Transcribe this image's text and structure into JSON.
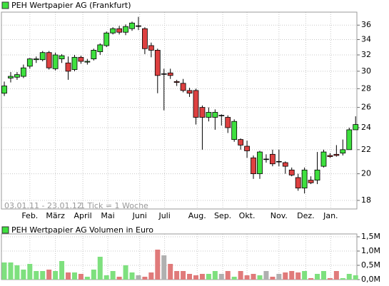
{
  "chart_data": [
    {
      "type": "candlestick",
      "title": "PEH Wertpapier AG (Frankfurt)",
      "annotations": [
        "03.01.11 - 23.01.12",
        "1 Tick = 1 Woche"
      ],
      "open": [
        27.5,
        29.2,
        29.3,
        29.4,
        30.6,
        31.4,
        31.4,
        32.3,
        30.3,
        31.5,
        31.0,
        30.2,
        31.7,
        31.1,
        31.5,
        32.4,
        33.2,
        34.9,
        35.5,
        35.0,
        35.5,
        35.9,
        35.5,
        33.2,
        32.6,
        29.7,
        29.8,
        28.8,
        28.6,
        27.8,
        27.8,
        26.0,
        25.0,
        25.0,
        25.2,
        25.0,
        22.9,
        22.9,
        22.3,
        21.3,
        20.0,
        21.2,
        21.6,
        21.0,
        20.9,
        20.3,
        19.7,
        18.9,
        19.5,
        19.5,
        20.6,
        21.5,
        21.6,
        21.7,
        22.0,
        23.8
      ],
      "high": [
        28.8,
        29.9,
        29.9,
        30.8,
        31.6,
        31.8,
        32.5,
        32.5,
        32.3,
        32.1,
        31.8,
        32.0,
        31.9,
        31.5,
        32.8,
        33.5,
        35.1,
        35.7,
        35.9,
        36.1,
        36.5,
        37.2,
        35.7,
        33.6,
        32.8,
        30.3,
        30.3,
        29.0,
        29.1,
        28.1,
        28.0,
        26.2,
        26.0,
        25.8,
        25.3,
        25.2,
        24.8,
        23.0,
        22.8,
        21.5,
        21.9,
        21.6,
        22.0,
        22.0,
        21.0,
        20.5,
        20.0,
        20.5,
        19.8,
        21.8,
        22.0,
        21.7,
        22.4,
        22.9,
        24.0,
        25.1
      ],
      "low": [
        27.2,
        28.7,
        29.0,
        29.2,
        30.3,
        31.0,
        31.2,
        30.2,
        30.1,
        31.0,
        29.0,
        30.0,
        30.9,
        30.8,
        31.3,
        32.0,
        33.0,
        34.7,
        34.7,
        34.6,
        35.2,
        35.3,
        32.1,
        31.7,
        27.5,
        25.7,
        29.1,
        28.3,
        27.6,
        27.1,
        24.3,
        22.0,
        24.6,
        23.8,
        24.2,
        23.5,
        22.7,
        22.0,
        21.3,
        19.6,
        19.6,
        20.9,
        20.6,
        20.6,
        20.0,
        19.8,
        18.7,
        18.5,
        19.2,
        19.2,
        20.5,
        21.3,
        21.4,
        21.5,
        22.0,
        23.8
      ],
      "close": [
        28.3,
        29.4,
        29.6,
        30.4,
        31.5,
        31.5,
        32.3,
        30.4,
        32.0,
        31.9,
        30.0,
        31.7,
        31.2,
        31.2,
        32.6,
        33.3,
        34.9,
        35.5,
        35.0,
        35.8,
        36.3,
        35.9,
        32.8,
        32.6,
        29.5,
        29.7,
        29.5,
        28.7,
        27.8,
        27.5,
        25.0,
        25.0,
        25.5,
        25.5,
        25.2,
        24.0,
        24.6,
        22.4,
        21.9,
        20.0,
        21.8,
        21.2,
        20.8,
        21.0,
        20.6,
        19.9,
        18.9,
        20.3,
        19.3,
        20.3,
        21.8,
        21.4,
        21.5,
        22.0,
        23.8,
        24.3
      ],
      "up_color": "#3ee03e",
      "down_color": "#dd4040",
      "flat_color": "#000000",
      "log_scale": true,
      "grid": true,
      "xlim": [
        -0.45,
        55.2
      ],
      "xticks": [
        {
          "value": 4.0,
          "label": "Feb."
        },
        {
          "value": 8.0,
          "label": "März"
        },
        {
          "value": 12.3,
          "label": "April"
        },
        {
          "value": 16.2,
          "label": "Mai"
        },
        {
          "value": 21.2,
          "label": "Juni"
        },
        {
          "value": 25.1,
          "label": "Juli"
        },
        {
          "value": 30.2,
          "label": "Aug."
        },
        {
          "value": 34.2,
          "label": "Sep."
        },
        {
          "value": 38.0,
          "label": "Okt."
        },
        {
          "value": 43.0,
          "label": "Nov."
        },
        {
          "value": 47.2,
          "label": "Dez."
        },
        {
          "value": 51.1,
          "label": "Jan."
        }
      ],
      "ylim": [
        17.4,
        37.9
      ],
      "yticks": [
        18,
        20,
        22,
        24,
        26,
        28,
        30,
        32,
        34,
        36
      ]
    },
    {
      "type": "bar",
      "title": "PEH Wertpapier AG Volumen in Euro",
      "values": [
        600000,
        600000,
        500000,
        350000,
        550000,
        300000,
        300000,
        350000,
        300000,
        650000,
        250000,
        250000,
        200000,
        100000,
        350000,
        800000,
        150000,
        300000,
        100000,
        500000,
        250000,
        150000,
        100000,
        250000,
        1050000,
        850000,
        550000,
        300000,
        300000,
        200000,
        150000,
        200000,
        200000,
        300000,
        200000,
        300000,
        100000,
        300000,
        150000,
        200000,
        150000,
        300000,
        100000,
        200000,
        250000,
        300000,
        250000,
        300000,
        50000,
        200000,
        300000,
        50000,
        300000,
        50000,
        200000,
        150000
      ],
      "up_color": "#7ee07e",
      "down_color": "#e07a7a",
      "flat_color": "#b0b0b0",
      "ylim": [
        0,
        1600000
      ],
      "yticks": [
        {
          "value": 0,
          "label": "0,0M"
        },
        {
          "value": 500000,
          "label": "0,5M"
        },
        {
          "value": 1000000,
          "label": "1,0M"
        },
        {
          "value": 1500000,
          "label": "1,5M"
        }
      ]
    }
  ]
}
